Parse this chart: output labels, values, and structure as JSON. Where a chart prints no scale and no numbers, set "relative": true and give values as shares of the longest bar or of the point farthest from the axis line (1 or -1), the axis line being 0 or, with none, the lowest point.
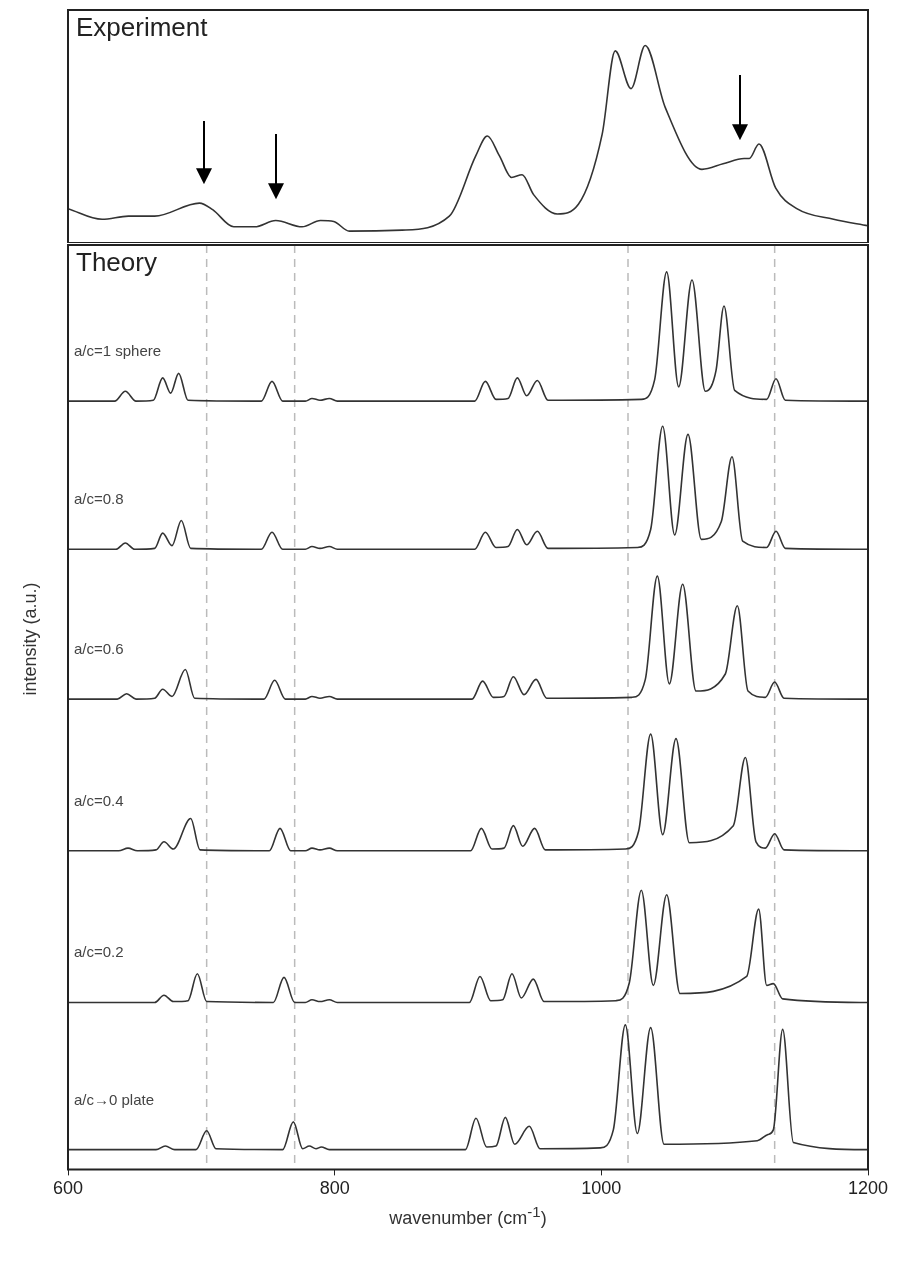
{
  "chart_data": [
    {
      "type": "line",
      "title": "Experiment",
      "relative": true,
      "xlim": [
        600,
        1200
      ],
      "tick_labels": false,
      "grid": false,
      "legend": false,
      "marker": "none",
      "line_style": "solid",
      "series": [
        {
          "color": "#333333",
          "x": [
            600,
            625.6,
            645.3,
            665,
            698.6,
            708.5,
            724.3,
            740,
            755.8,
            775.6,
            789.4,
            799.3,
            811,
            850.6,
            886,
            905.8,
            914.5,
            923.6,
            932.7,
            940.6,
            949.2,
            967,
            982.8,
            1000.6,
            1010.4,
            1022.3,
            1032.9,
            1047.9,
            1075.5,
            1091.3,
            1107.1,
            1111,
            1118.2,
            1130.8,
            1146.6,
            1174.2,
            1200
          ],
          "values": [
            0.174,
            0.12,
            0.136,
            0.136,
            0.202,
            0.169,
            0.082,
            0.082,
            0.114,
            0.082,
            0.114,
            0.109,
            0.06,
            0.065,
            0.136,
            0.441,
            0.542,
            0.441,
            0.332,
            0.346,
            0.245,
            0.147,
            0.196,
            0.55,
            0.973,
            0.782,
            1.0,
            0.687,
            0.373,
            0.401,
            0.428,
            0.428,
            0.501,
            0.278,
            0.174,
            0.12,
            0.087
          ]
        }
      ]
    },
    {
      "type": "line",
      "title": "Theory",
      "relative": true,
      "xlim": [
        600,
        1200
      ],
      "xticks": [
        600,
        800,
        1000,
        1200
      ],
      "xlabel": "wavenumber (cm$^{-1}$)",
      "ylabel": "intensity (a.u.)",
      "grid": false,
      "legend": false,
      "marker": "none",
      "line_style": "solid",
      "ref_lines": [
        {
          "axis": "x",
          "value": 704,
          "color": "#bbbbbb",
          "line_style": "dashed"
        },
        {
          "axis": "x",
          "value": 770,
          "color": "#bbbbbb",
          "line_style": "dashed"
        },
        {
          "axis": "x",
          "value": 1020,
          "color": "#bbbbbb",
          "line_style": "dashed"
        },
        {
          "axis": "x",
          "value": 1130,
          "color": "#bbbbbb",
          "line_style": "dashed"
        }
      ],
      "series": [
        {
          "name": "a/c=1 sphere",
          "color": "#333333",
          "x": [
            600,
            635,
            643,
            651,
            664,
            671,
            677,
            683,
            690,
            745,
            753,
            761,
            778,
            783,
            789,
            796,
            802,
            905,
            913,
            921,
            930,
            937,
            944,
            952,
            960,
            1030,
            1040,
            1049,
            1058,
            1068,
            1078,
            1086,
            1092,
            1100,
            1124,
            1131,
            1138,
            1200
          ],
          "values": [
            0.856,
            0.856,
            0.867,
            0.856,
            0.857,
            0.882,
            0.865,
            0.887,
            0.857,
            0.856,
            0.878,
            0.856,
            0.856,
            0.859,
            0.857,
            0.859,
            0.856,
            0.856,
            0.878,
            0.858,
            0.859,
            0.882,
            0.862,
            0.879,
            0.857,
            0.858,
            0.88,
            1.0,
            0.872,
            0.991,
            0.867,
            0.89,
            0.962,
            0.868,
            0.858,
            0.881,
            0.857,
            0.856
          ]
        },
        {
          "name": "a/c=0.8",
          "color": "#333333",
          "x": [
            600,
            636,
            643,
            650,
            665,
            671,
            678,
            685,
            692,
            745,
            753,
            761,
            778,
            783,
            789,
            796,
            802,
            905,
            913,
            921,
            930,
            937,
            944,
            952,
            960,
            1027,
            1037,
            1046,
            1055,
            1065,
            1075,
            1090,
            1098,
            1106,
            1124,
            1131,
            1138,
            1200
          ],
          "values": [
            0.691,
            0.691,
            0.698,
            0.691,
            0.692,
            0.709,
            0.695,
            0.723,
            0.692,
            0.691,
            0.71,
            0.691,
            0.691,
            0.694,
            0.692,
            0.694,
            0.691,
            0.691,
            0.71,
            0.693,
            0.694,
            0.713,
            0.696,
            0.711,
            0.692,
            0.693,
            0.713,
            0.828,
            0.707,
            0.819,
            0.702,
            0.722,
            0.794,
            0.7,
            0.693,
            0.711,
            0.692,
            0.691
          ]
        },
        {
          "name": "a/c=0.6",
          "color": "#333333",
          "x": [
            600,
            637,
            644,
            651,
            665,
            671,
            678,
            688,
            695,
            747,
            755,
            763,
            778,
            783,
            789,
            796,
            802,
            903,
            911,
            919,
            927,
            934,
            942,
            951,
            959,
            1023,
            1033,
            1042,
            1051,
            1061,
            1071,
            1093,
            1102,
            1110,
            1123,
            1130,
            1137,
            1200
          ],
          "values": [
            0.524,
            0.524,
            0.53,
            0.524,
            0.525,
            0.535,
            0.527,
            0.557,
            0.525,
            0.524,
            0.545,
            0.524,
            0.524,
            0.527,
            0.525,
            0.527,
            0.524,
            0.524,
            0.544,
            0.526,
            0.527,
            0.549,
            0.529,
            0.546,
            0.525,
            0.526,
            0.546,
            0.661,
            0.541,
            0.652,
            0.533,
            0.552,
            0.628,
            0.533,
            0.526,
            0.543,
            0.525,
            0.524
          ]
        },
        {
          "name": "a/c=0.4",
          "color": "#333333",
          "x": [
            600,
            638,
            645,
            652,
            666,
            672,
            679,
            692,
            699,
            751,
            759,
            767,
            778,
            783,
            789,
            796,
            802,
            902,
            910,
            918,
            927,
            934,
            941,
            950,
            958,
            1018,
            1028,
            1037,
            1046,
            1056,
            1066,
            1099,
            1108,
            1116,
            1123,
            1130,
            1137,
            1200
          ],
          "values": [
            0.355,
            0.355,
            0.358,
            0.355,
            0.356,
            0.365,
            0.357,
            0.391,
            0.356,
            0.355,
            0.38,
            0.355,
            0.355,
            0.358,
            0.356,
            0.358,
            0.355,
            0.355,
            0.38,
            0.357,
            0.358,
            0.383,
            0.36,
            0.38,
            0.356,
            0.357,
            0.377,
            0.485,
            0.373,
            0.48,
            0.364,
            0.383,
            0.459,
            0.365,
            0.358,
            0.374,
            0.356,
            0.355
          ]
        },
        {
          "name": "a/c=0.2",
          "color": "#333333",
          "x": [
            600,
            665,
            672,
            679,
            690,
            697,
            704,
            754,
            762,
            770,
            778,
            783,
            789,
            796,
            802,
            901,
            909,
            917,
            926,
            933,
            940,
            949,
            957,
            1011,
            1021,
            1030,
            1039,
            1049,
            1059,
            1109,
            1118,
            1124,
            1129,
            1136,
            1200
          ],
          "values": [
            0.186,
            0.186,
            0.194,
            0.187,
            0.188,
            0.218,
            0.187,
            0.186,
            0.214,
            0.186,
            0.186,
            0.189,
            0.187,
            0.189,
            0.186,
            0.186,
            0.215,
            0.188,
            0.189,
            0.218,
            0.191,
            0.212,
            0.187,
            0.188,
            0.208,
            0.311,
            0.205,
            0.306,
            0.196,
            0.215,
            0.29,
            0.205,
            0.207,
            0.19,
            0.186
          ]
        },
        {
          "name": "a/c→0 plate",
          "color": "#333333",
          "x": [
            600,
            666,
            673,
            680,
            696,
            704,
            711,
            761,
            769,
            776,
            781,
            786,
            790,
            796,
            898,
            906,
            914,
            921,
            928,
            935,
            946,
            954,
            999,
            1009,
            1018,
            1027,
            1037,
            1047,
            1117,
            1125,
            1129,
            1136,
            1144,
            1200
          ],
          "values": [
            0.022,
            0.022,
            0.026,
            0.022,
            0.022,
            0.043,
            0.023,
            0.022,
            0.053,
            0.023,
            0.026,
            0.023,
            0.025,
            0.022,
            0.022,
            0.057,
            0.025,
            0.026,
            0.058,
            0.028,
            0.048,
            0.023,
            0.024,
            0.044,
            0.161,
            0.04,
            0.158,
            0.028,
            0.032,
            0.039,
            0.044,
            0.156,
            0.03,
            0.022
          ]
        }
      ]
    }
  ]
}
